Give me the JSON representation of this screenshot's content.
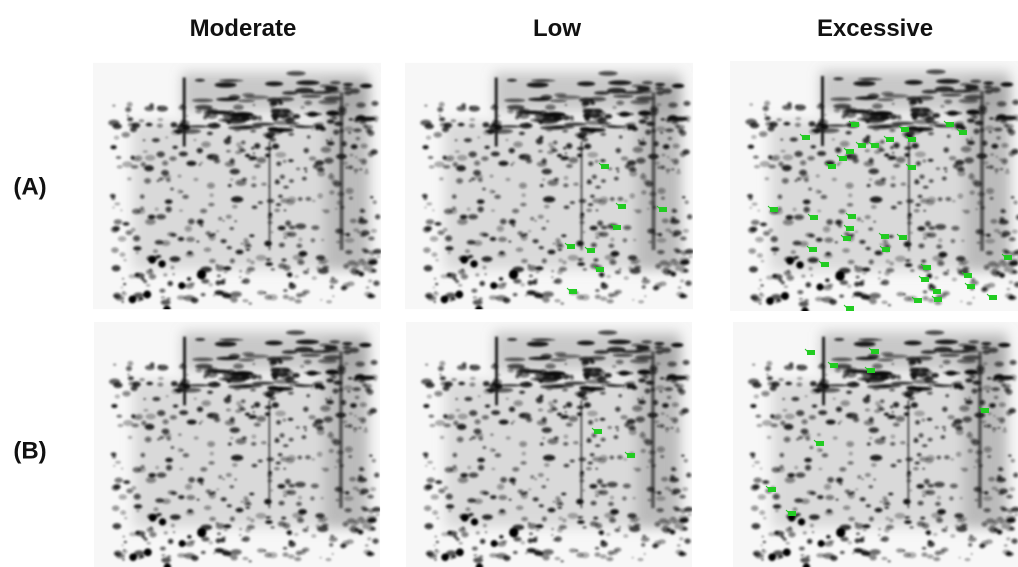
{
  "columns": [
    "Moderate",
    "Low",
    "Excessive"
  ],
  "rows": [
    "(A)",
    "(B)"
  ]
}
